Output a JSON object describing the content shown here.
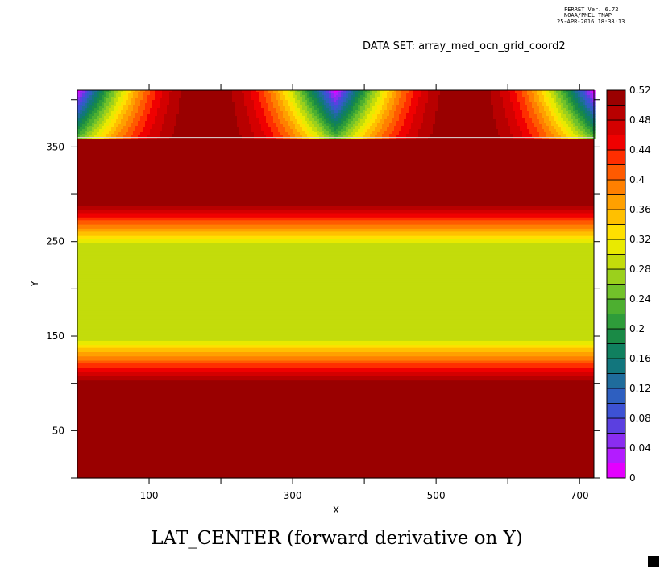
{
  "header": {
    "line1": "FERRET Ver. 6.72",
    "line2": "NOAA/PMEL TMAP",
    "line3": "25-APR-2016 18:38:13",
    "dataset": "DATA SET: array_med_ocn_grid_coord2"
  },
  "chart_data": {
    "type": "heatmap",
    "title": "LAT_CENTER (forward derivative on Y)",
    "xlabel": "X",
    "ylabel": "Y",
    "xlim": [
      0,
      720
    ],
    "ylim": [
      0,
      410
    ],
    "x_ticks": [
      100,
      300,
      500,
      700
    ],
    "x_minor_ticks": [
      200,
      400,
      600
    ],
    "y_ticks": [
      50,
      150,
      250,
      350
    ],
    "y_minor_ticks": [
      0,
      100,
      200,
      300,
      400
    ],
    "colorbar": {
      "min": 0,
      "max": 0.52,
      "step": 0.02,
      "labels": [
        "0.52",
        "0.48",
        "0.44",
        "0.4",
        "0.36",
        "0.32",
        "0.28",
        "0.24",
        "0.2",
        "0.16",
        "0.12",
        "0.08",
        "0.04",
        "0"
      ],
      "label_values": [
        0.52,
        0.48,
        0.44,
        0.4,
        0.36,
        0.32,
        0.28,
        0.24,
        0.2,
        0.16,
        0.12,
        0.08,
        0.04,
        0
      ]
    },
    "bands": [
      {
        "y_from": 0,
        "y_to": 100,
        "value": 0.52
      },
      {
        "y_from": 100,
        "y_to": 150,
        "value_bottom": 0.52,
        "value_top": 0.28
      },
      {
        "y_from": 150,
        "y_to": 245,
        "value": 0.28
      },
      {
        "y_from": 245,
        "y_to": 292,
        "value_bottom": 0.28,
        "value_top": 0.52
      },
      {
        "y_from": 292,
        "y_to": 360,
        "value": 0.52
      }
    ],
    "top_region": {
      "y_from": 360,
      "y_to": 410,
      "peaks_x": [
        180,
        540
      ],
      "trough_x": [
        0,
        360,
        720
      ]
    }
  }
}
